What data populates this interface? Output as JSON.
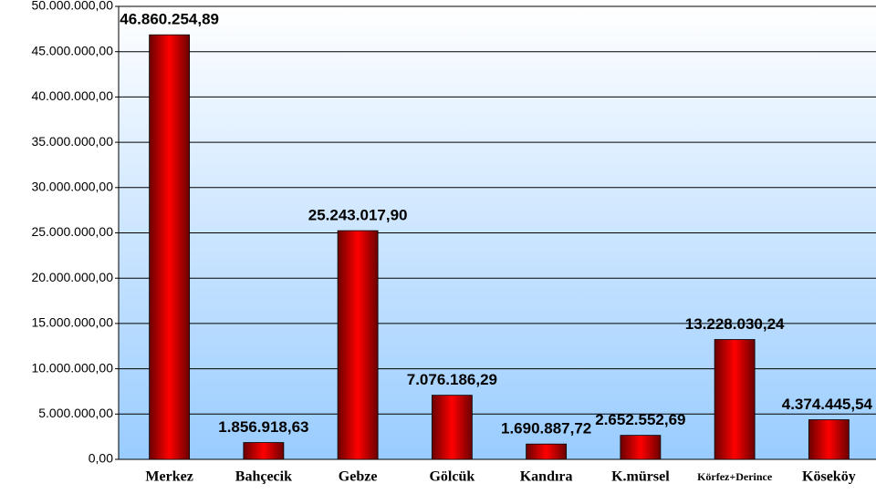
{
  "chart_data": {
    "type": "bar",
    "categories": [
      "Merkez",
      "Bahçecik",
      "Gebze",
      "Gölcük",
      "Kandıra",
      "K.mürsel",
      "Körfez+Derince",
      "Köseköy"
    ],
    "values": [
      46860254.89,
      1856918.63,
      25243017.9,
      7076186.29,
      1690887.72,
      2652552.69,
      13228030.24,
      4374445.54
    ],
    "value_labels": [
      "46.860.254,89",
      "1.856.918,63",
      "25.243.017,90",
      "7.076.186,29",
      "1.690.887,72",
      "2.652.552,69",
      "13.228.030,24",
      "4.374.445,54"
    ],
    "color": "#ff0000",
    "ylim": [
      0,
      50000000
    ],
    "yticks": [
      {
        "value": 0,
        "label": "0,00"
      },
      {
        "value": 5000000,
        "label": "5.000.000,00"
      },
      {
        "value": 10000000,
        "label": "10.000.000,00"
      },
      {
        "value": 15000000,
        "label": "15.000.000,00"
      },
      {
        "value": 20000000,
        "label": "20.000.000,00"
      },
      {
        "value": 25000000,
        "label": "25.000.000,00"
      },
      {
        "value": 30000000,
        "label": "30.000.000,00"
      },
      {
        "value": 35000000,
        "label": "35.000.000,00"
      },
      {
        "value": 40000000,
        "label": "40.000.000,00"
      },
      {
        "value": 45000000,
        "label": "45.000.000,00"
      },
      {
        "value": 50000000,
        "label": "50.000.000,00"
      }
    ],
    "grid": true
  }
}
